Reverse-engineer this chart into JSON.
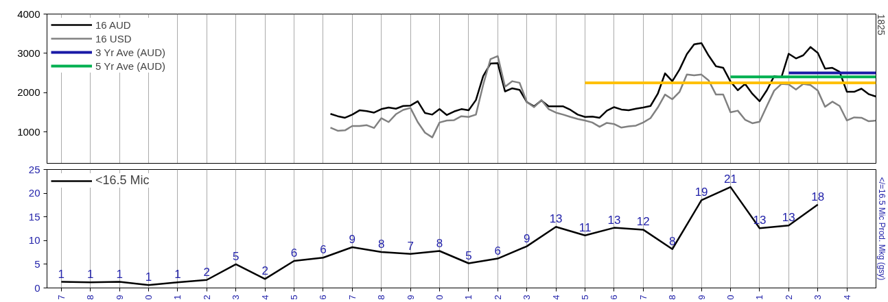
{
  "chart_data": [
    {
      "type": "line",
      "ylim": [
        200,
        4000
      ],
      "yticks": [
        1000,
        2000,
        3000,
        4000
      ],
      "categories": [
        null,
        null,
        null,
        null,
        null,
        null,
        null,
        null,
        null,
        null,
        null,
        null,
        null,
        null,
        null,
        null,
        null,
        null,
        null,
        null,
        null,
        null,
        null,
        null,
        null,
        null,
        null,
        null,
        null,
        null,
        null,
        null,
        null,
        null,
        null,
        null,
        null,
        null,
        null,
        null,
        null,
        null,
        null,
        null,
        null,
        null,
        null,
        null,
        null,
        null,
        null,
        null,
        null,
        null,
        null,
        null,
        null,
        null,
        null,
        null,
        null,
        null,
        null,
        null,
        null,
        null,
        null,
        null,
        null,
        null,
        null,
        null,
        null,
        null,
        null,
        null,
        null,
        null,
        null,
        null,
        null,
        null,
        null,
        null,
        null,
        null,
        null,
        null,
        null,
        null,
        null,
        null,
        null,
        null,
        null,
        null,
        null,
        null,
        null,
        null,
        null,
        null,
        null,
        null,
        null,
        null,
        null,
        null,
        null,
        null,
        null,
        null,
        null
      ],
      "tick_labels": "y",
      "grid": "x",
      "legend": "top left",
      "marker": "none",
      "line_style": "solid",
      "annotations": [
        "1825"
      ],
      "series": [
        {
          "name": "16 AUD",
          "color": "#000000",
          "values": [
            null,
            null,
            null,
            null,
            null,
            null,
            null,
            null,
            null,
            null,
            null,
            null,
            null,
            null,
            null,
            null,
            null,
            null,
            null,
            null,
            null,
            null,
            null,
            null,
            null,
            null,
            null,
            null,
            null,
            null,
            null,
            null,
            null,
            null,
            null,
            null,
            null,
            1460,
            1400,
            1360,
            1440,
            1550,
            1530,
            1490,
            1580,
            1620,
            1590,
            1660,
            1670,
            1780,
            1480,
            1440,
            1580,
            1430,
            1520,
            1580,
            1550,
            1810,
            2420,
            2740,
            2750,
            2030,
            2110,
            2070,
            1760,
            1650,
            1800,
            1650,
            1650,
            1650,
            1560,
            1440,
            1380,
            1390,
            1360,
            1540,
            1630,
            1570,
            1550,
            1590,
            1620,
            1660,
            1970,
            2490,
            2290,
            2590,
            2980,
            3230,
            3260,
            2940,
            2670,
            2630,
            2280,
            2060,
            2220,
            1970,
            1780,
            2060,
            2420,
            2390,
            2990,
            2870,
            2950,
            3160,
            3010,
            2610,
            2630,
            2530,
            2020,
            2020,
            2100,
            1960,
            1900
          ]
        },
        {
          "name": "16 USD",
          "color": "#808080",
          "values": [
            null,
            null,
            null,
            null,
            null,
            null,
            null,
            null,
            null,
            null,
            null,
            null,
            null,
            null,
            null,
            null,
            null,
            null,
            null,
            null,
            null,
            null,
            null,
            null,
            null,
            null,
            null,
            null,
            null,
            null,
            null,
            null,
            null,
            null,
            null,
            null,
            null,
            1110,
            1030,
            1040,
            1150,
            1150,
            1170,
            1100,
            1350,
            1250,
            1450,
            1560,
            1610,
            1250,
            980,
            860,
            1240,
            1290,
            1300,
            1400,
            1380,
            1440,
            2200,
            2850,
            2930,
            2150,
            2290,
            2250,
            1760,
            1630,
            1810,
            1580,
            1490,
            1440,
            1380,
            1330,
            1290,
            1240,
            1130,
            1230,
            1200,
            1110,
            1140,
            1160,
            1240,
            1350,
            1620,
            1950,
            1830,
            2020,
            2460,
            2440,
            2460,
            2310,
            1950,
            1950,
            1500,
            1540,
            1310,
            1220,
            1260,
            1660,
            2050,
            2220,
            2210,
            2080,
            2220,
            2190,
            2050,
            1640,
            1770,
            1660,
            1290,
            1370,
            1360,
            1270,
            1290
          ]
        },
        {
          "name": "3 Yr Ave (AUD)",
          "color": "#1a1aa6",
          "values": [
            null,
            null,
            null,
            null,
            null,
            null,
            null,
            null,
            null,
            null,
            null,
            null,
            null,
            null,
            null,
            null,
            null,
            null,
            null,
            null,
            null,
            null,
            null,
            null,
            null,
            null,
            null,
            null,
            null,
            null,
            null,
            null,
            null,
            null,
            null,
            null,
            null,
            null,
            null,
            null,
            null,
            null,
            null,
            null,
            null,
            null,
            null,
            null,
            null,
            null,
            null,
            null,
            null,
            null,
            null,
            null,
            null,
            null,
            null,
            null,
            null,
            null,
            null,
            null,
            null,
            null,
            null,
            null,
            null,
            null,
            null,
            null,
            null,
            null,
            null,
            null,
            null,
            null,
            null,
            null,
            null,
            null,
            null,
            null,
            null,
            null,
            null,
            null,
            null,
            null,
            null,
            null,
            null,
            null,
            null,
            null,
            null,
            null,
            null,
            null,
            2500,
            2500,
            2500,
            2500,
            2500,
            2500,
            2500,
            2500,
            2500,
            2500,
            2500,
            2500,
            2500
          ]
        },
        {
          "name": "5 Yr Ave (AUD)",
          "color": "#00b050",
          "values": [
            null,
            null,
            null,
            null,
            null,
            null,
            null,
            null,
            null,
            null,
            null,
            null,
            null,
            null,
            null,
            null,
            null,
            null,
            null,
            null,
            null,
            null,
            null,
            null,
            null,
            null,
            null,
            null,
            null,
            null,
            null,
            null,
            null,
            null,
            null,
            null,
            null,
            null,
            null,
            null,
            null,
            null,
            null,
            null,
            null,
            null,
            null,
            null,
            null,
            null,
            null,
            null,
            null,
            null,
            null,
            null,
            null,
            null,
            null,
            null,
            null,
            null,
            null,
            null,
            null,
            null,
            null,
            null,
            null,
            null,
            null,
            null,
            null,
            null,
            null,
            null,
            null,
            null,
            null,
            null,
            null,
            null,
            null,
            null,
            null,
            null,
            null,
            null,
            null,
            null,
            null,
            null,
            2400,
            2400,
            2400,
            2400,
            2400,
            2400,
            2400,
            2400,
            2400,
            2400,
            2400,
            2400,
            2400,
            2400,
            2400,
            2400,
            2400,
            2400,
            2400,
            2400,
            2400
          ]
        },
        {
          "color": "#ffc000",
          "values": [
            null,
            null,
            null,
            null,
            null,
            null,
            null,
            null,
            null,
            null,
            null,
            null,
            null,
            null,
            null,
            null,
            null,
            null,
            null,
            null,
            null,
            null,
            null,
            null,
            null,
            null,
            null,
            null,
            null,
            null,
            null,
            null,
            null,
            null,
            null,
            null,
            null,
            null,
            null,
            null,
            null,
            null,
            null,
            null,
            null,
            null,
            null,
            null,
            null,
            null,
            null,
            null,
            null,
            null,
            null,
            null,
            null,
            null,
            null,
            null,
            null,
            null,
            null,
            null,
            null,
            null,
            null,
            null,
            null,
            null,
            null,
            null,
            2250,
            2250,
            2250,
            2250,
            2250,
            2250,
            2250,
            2250,
            2250,
            2250,
            2250,
            2250,
            2250,
            2250,
            2250,
            2250,
            2250,
            2250,
            2250,
            2250,
            2250,
            2250,
            2250,
            2250,
            2250,
            2250,
            2250,
            2250,
            2250,
            2250,
            2250,
            2250,
            2250,
            2250,
            2250,
            2250,
            2250,
            2250,
            2250,
            2250,
            2250
          ]
        }
      ]
    },
    {
      "type": "line",
      "ylim": [
        0,
        25
      ],
      "yticks": [
        0,
        5,
        10,
        15,
        20,
        25
      ],
      "categories": [
        "7",
        "8",
        "9",
        "0",
        "1",
        "2",
        "3",
        "4",
        "5",
        "6",
        "7",
        "8",
        "9",
        "0",
        "1",
        "2",
        "3",
        "4",
        "5",
        "6",
        "7",
        "8",
        "9",
        "0",
        "1",
        "2",
        "3",
        "4",
        null
      ],
      "grid": "x",
      "legend": "top left",
      "marker": "none",
      "line_style": "solid",
      "y2label": "</=16.5 Mic Prod. Mkg (gsy)",
      "series": [
        {
          "name": "<16.5 Mic",
          "color": "#000000",
          "values": [
            1.3,
            1.2,
            1.3,
            0.6,
            1.2,
            1.7,
            5.0,
            1.9,
            5.7,
            6.4,
            8.6,
            7.6,
            7.2,
            7.8,
            5.2,
            6.2,
            8.8,
            12.9,
            11.1,
            12.7,
            12.3,
            8.2,
            18.5,
            21.3,
            12.6,
            13.2,
            17.6,
            null,
            null
          ],
          "value_labels": [
            "1",
            "1",
            "1",
            "1",
            "1",
            "2",
            "5",
            "2",
            "6",
            "6",
            "9",
            "8",
            "7",
            "8",
            "5",
            "6",
            "9",
            "13",
            "11",
            "13",
            "12",
            "8",
            "19",
            "21",
            "13",
            "13",
            "18",
            null,
            null
          ]
        }
      ]
    }
  ]
}
